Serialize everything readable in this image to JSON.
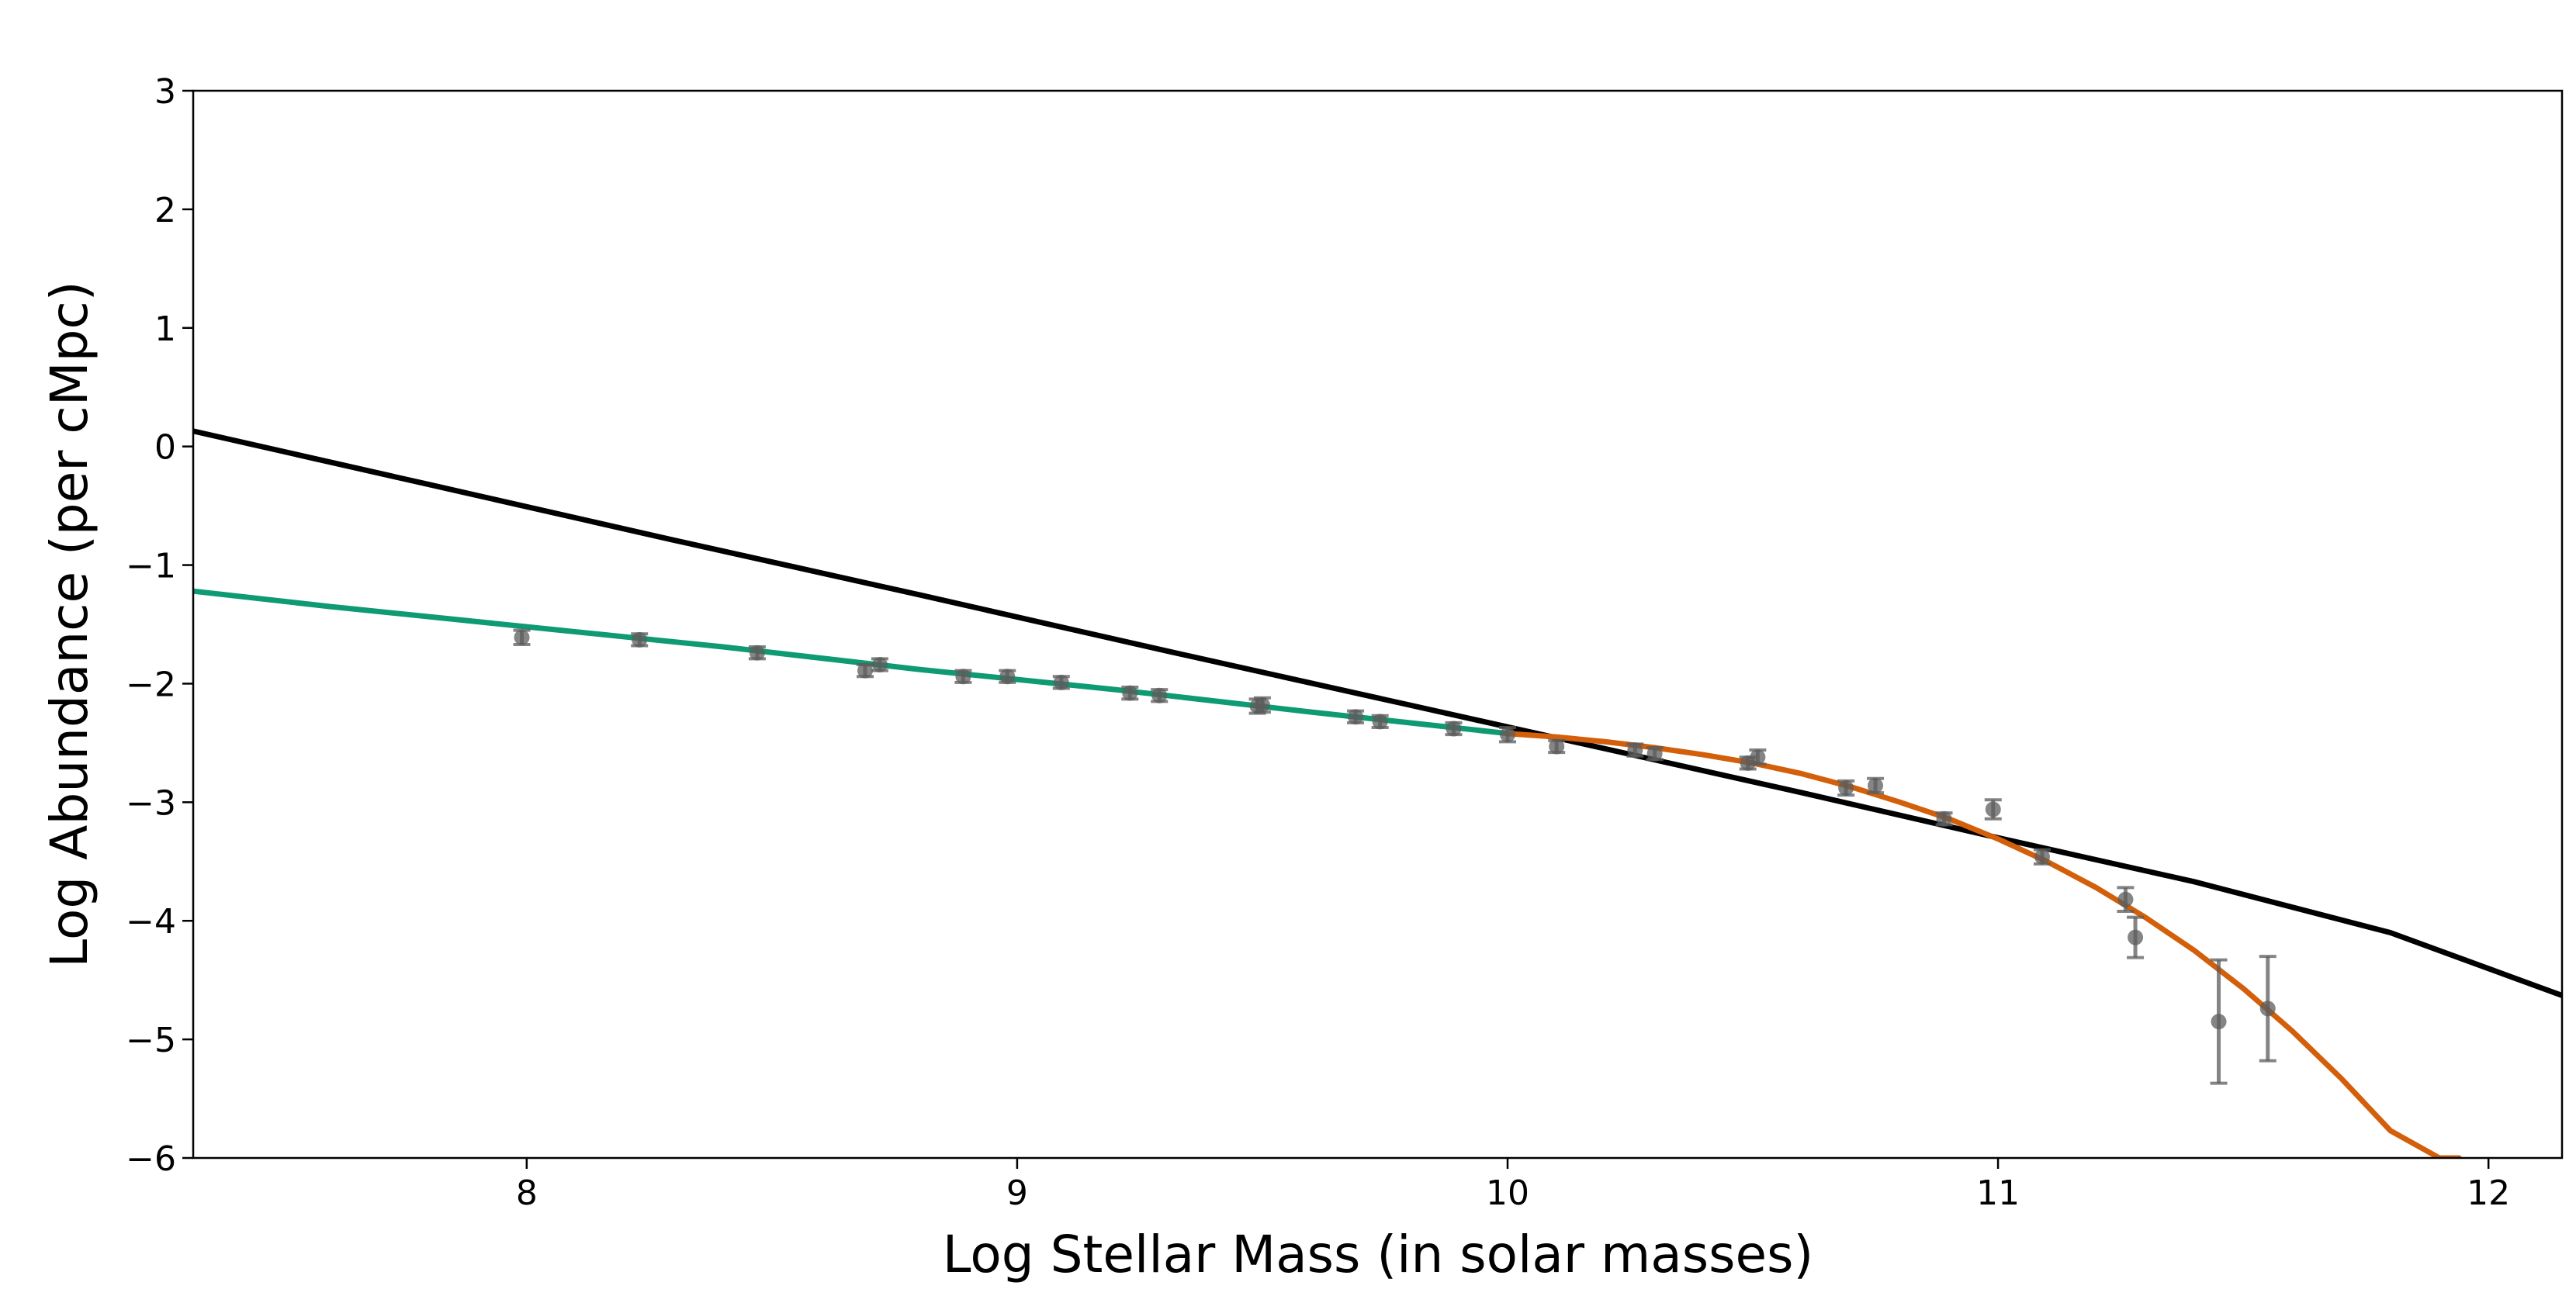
{
  "chart_data": {
    "type": "scatter",
    "title": "",
    "xlabel": "Log Stellar Mass (in solar masses)",
    "ylabel": "Log Abundance (per cMpc)",
    "xlim": [
      7.32,
      12.15
    ],
    "ylim": [
      -6,
      3
    ],
    "xticks": [
      8,
      9,
      10,
      11,
      12
    ],
    "yticks": [
      3,
      2,
      1,
      0,
      -1,
      -2,
      -3,
      -4,
      -5,
      -6
    ],
    "xtick_labels": [
      "8",
      "9",
      "10",
      "11",
      "12"
    ],
    "ytick_labels": [
      "3",
      "2",
      "1",
      "0",
      "−1",
      "−2",
      "−3",
      "−4",
      "−5",
      "−6"
    ],
    "grid": false,
    "legend": "none",
    "series": [
      {
        "kind": "line",
        "color": "#000000",
        "x": [
          7.32,
          7.8,
          8.3,
          8.8,
          9.3,
          9.8,
          10.2,
          10.6,
          11.0,
          11.4,
          11.8,
          12.15
        ],
        "y": [
          0.13,
          -0.32,
          -0.79,
          -1.25,
          -1.72,
          -2.18,
          -2.55,
          -2.92,
          -3.3,
          -3.67,
          -4.1,
          -4.63
        ]
      },
      {
        "kind": "line",
        "color": "#0e9a72",
        "x": [
          7.32,
          7.6,
          8.0,
          8.4,
          8.8,
          9.2,
          9.6,
          10.0
        ],
        "y": [
          -1.22,
          -1.35,
          -1.52,
          -1.69,
          -1.88,
          -2.05,
          -2.24,
          -2.42
        ]
      },
      {
        "kind": "line",
        "color": "#d35f0a",
        "x": [
          10.0,
          10.1,
          10.2,
          10.3,
          10.4,
          10.5,
          10.6,
          10.7,
          10.8,
          10.9,
          11.0,
          11.1,
          11.2,
          11.3,
          11.4,
          11.5,
          11.6,
          11.7,
          11.8,
          11.9,
          11.94
        ],
        "y": [
          -2.42,
          -2.45,
          -2.49,
          -2.54,
          -2.6,
          -2.67,
          -2.76,
          -2.87,
          -3.0,
          -3.14,
          -3.31,
          -3.5,
          -3.72,
          -3.97,
          -4.25,
          -4.57,
          -4.93,
          -5.33,
          -5.77,
          -6.0,
          -6.0
        ]
      },
      {
        "kind": "errorbar-points",
        "color": "#5c5c5c",
        "x": [
          7.99,
          8.23,
          8.47,
          8.69,
          8.72,
          8.89,
          8.98,
          9.09,
          9.23,
          9.29,
          9.49,
          9.5,
          9.69,
          9.74,
          9.89,
          10.0,
          10.1,
          10.26,
          10.3,
          10.49,
          10.51,
          10.69,
          10.75,
          10.89,
          10.99,
          11.09,
          11.26,
          11.28,
          11.45,
          11.55
        ],
        "y": [
          -1.61,
          -1.63,
          -1.74,
          -1.89,
          -1.84,
          -1.94,
          -1.94,
          -1.99,
          -2.08,
          -2.1,
          -2.19,
          -2.18,
          -2.28,
          -2.32,
          -2.38,
          -2.43,
          -2.53,
          -2.56,
          -2.59,
          -2.67,
          -2.62,
          -2.88,
          -2.86,
          -3.14,
          -3.06,
          -3.46,
          -3.82,
          -4.14,
          -4.85,
          -4.74
        ],
        "yerr": [
          0.06,
          0.05,
          0.05,
          0.05,
          0.05,
          0.05,
          0.05,
          0.05,
          0.05,
          0.05,
          0.06,
          0.06,
          0.05,
          0.05,
          0.05,
          0.06,
          0.05,
          0.05,
          0.05,
          0.05,
          0.06,
          0.06,
          0.06,
          0.05,
          0.08,
          0.06,
          0.1,
          0.17,
          0.52,
          0.44
        ]
      }
    ]
  }
}
